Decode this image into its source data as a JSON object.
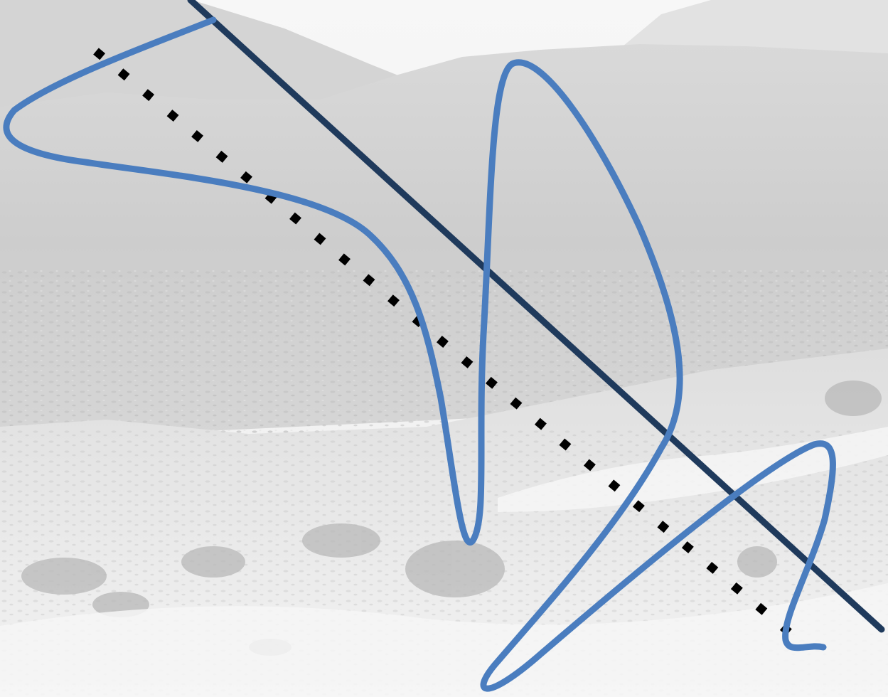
{
  "scene": {
    "description_kind": "grayscale rocky mountain valley photograph with overlaid strokes",
    "colors": {
      "sky": "#f5f5f5",
      "far_mountain": "#e9e9e9",
      "slope_light": "#dcdcdc",
      "slope_mid": "#cfcfcf",
      "scree": "#c8c8c8",
      "rock_dark": "#a9a9a9",
      "snow_rock": "#f2f2f2",
      "curve_stroke": "#4a7dbf",
      "straight_stroke": "#1f3a5c",
      "dotted_stroke": "#000000"
    },
    "overlay": {
      "curve_label": "",
      "straight_label": "",
      "dotted_label": ""
    }
  }
}
